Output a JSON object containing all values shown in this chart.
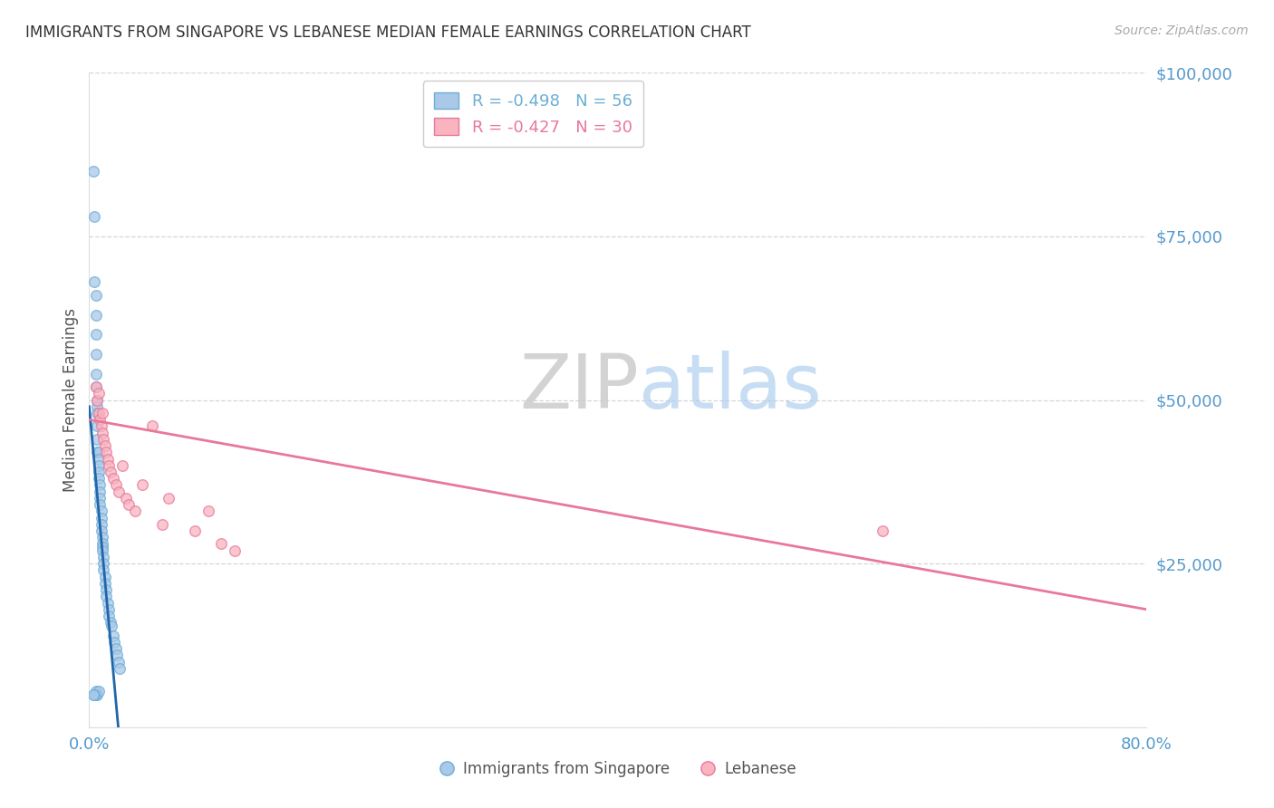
{
  "title": "IMMIGRANTS FROM SINGAPORE VS LEBANESE MEDIAN FEMALE EARNINGS CORRELATION CHART",
  "source": "Source: ZipAtlas.com",
  "ylabel": "Median Female Earnings",
  "watermark_zip": "ZIP",
  "watermark_atlas": "atlas",
  "legend_r1": "R = -0.498",
  "legend_n1": "N = 56",
  "legend_r2": "R = -0.427",
  "legend_n2": "N = 30",
  "legend_title_singapore": "Immigrants from Singapore",
  "legend_title_lebanese": "Lebanese",
  "xlim": [
    0.0,
    0.8
  ],
  "ylim": [
    0,
    100000
  ],
  "yticks": [
    0,
    25000,
    50000,
    75000,
    100000
  ],
  "ytick_labels": [
    "",
    "$25,000",
    "$50,000",
    "$75,000",
    "$100,000"
  ],
  "xtick_positions": [
    0.0,
    0.2,
    0.4,
    0.6,
    0.8
  ],
  "xtick_labels": [
    "0.0%",
    "",
    "",
    "",
    "80.0%"
  ],
  "background_color": "#ffffff",
  "grid_color": "#cccccc",
  "title_color": "#333333",
  "axis_label_color": "#555555",
  "tick_color": "#5599cc",
  "singapore_fill": "#aac8e8",
  "singapore_edge": "#6baed6",
  "lebanese_fill": "#f9b4c0",
  "lebanese_edge": "#e8789a",
  "singapore_line_color": "#2166ac",
  "lebanese_line_color": "#e8789a",
  "sg_x": [
    0.003,
    0.004,
    0.004,
    0.005,
    0.005,
    0.005,
    0.005,
    0.005,
    0.005,
    0.006,
    0.006,
    0.006,
    0.006,
    0.006,
    0.006,
    0.007,
    0.007,
    0.007,
    0.007,
    0.007,
    0.008,
    0.008,
    0.008,
    0.008,
    0.009,
    0.009,
    0.009,
    0.009,
    0.01,
    0.01,
    0.01,
    0.01,
    0.011,
    0.011,
    0.011,
    0.012,
    0.012,
    0.013,
    0.013,
    0.014,
    0.015,
    0.015,
    0.016,
    0.017,
    0.018,
    0.019,
    0.02,
    0.021,
    0.022,
    0.023,
    0.005,
    0.005,
    0.006,
    0.007,
    0.004,
    0.003
  ],
  "sg_y": [
    85000,
    78000,
    68000,
    66000,
    63000,
    60000,
    57000,
    54000,
    52000,
    50000,
    49000,
    48000,
    46000,
    44000,
    42000,
    42000,
    41000,
    40000,
    39000,
    38000,
    37000,
    36000,
    35000,
    34000,
    33000,
    32000,
    31000,
    30000,
    29000,
    28000,
    27500,
    27000,
    26000,
    25000,
    24000,
    23000,
    22000,
    21000,
    20000,
    19000,
    18000,
    17000,
    16000,
    15500,
    14000,
    13000,
    12000,
    11000,
    10000,
    9000,
    5000,
    5500,
    5000,
    5500,
    5000,
    5000
  ],
  "lb_x": [
    0.005,
    0.006,
    0.007,
    0.007,
    0.008,
    0.009,
    0.01,
    0.01,
    0.011,
    0.012,
    0.013,
    0.014,
    0.015,
    0.016,
    0.018,
    0.02,
    0.022,
    0.025,
    0.028,
    0.03,
    0.035,
    0.04,
    0.048,
    0.055,
    0.06,
    0.08,
    0.09,
    0.1,
    0.11,
    0.6
  ],
  "lb_y": [
    52000,
    50000,
    51000,
    48000,
    47000,
    46000,
    48000,
    45000,
    44000,
    43000,
    42000,
    41000,
    40000,
    39000,
    38000,
    37000,
    36000,
    40000,
    35000,
    34000,
    33000,
    37000,
    46000,
    31000,
    35000,
    30000,
    33000,
    28000,
    27000,
    30000
  ],
  "sg_trend_x0": 0.0,
  "sg_trend_y0": 49000,
  "sg_trend_x1": 0.022,
  "sg_trend_y1": 0,
  "lb_trend_x0": 0.0,
  "lb_trend_y0": 47000,
  "lb_trend_x1": 0.8,
  "lb_trend_y1": 18000,
  "marker_size": 70,
  "marker_alpha": 0.75,
  "figsize": [
    14.06,
    8.92
  ],
  "dpi": 100
}
